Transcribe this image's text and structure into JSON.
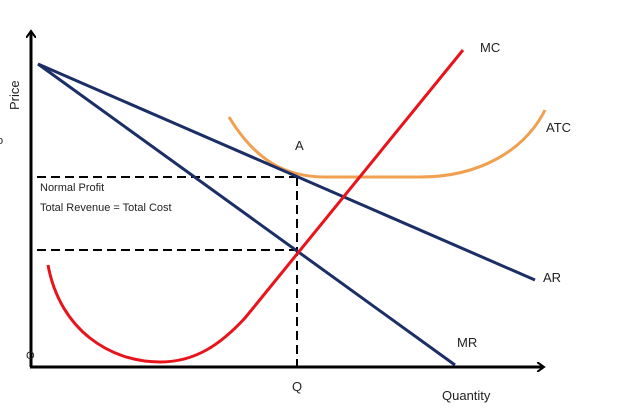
{
  "axes": {
    "y_label": "Price",
    "x_label": "Quantity",
    "origin_label": "O",
    "stray_mark": "o"
  },
  "curves": {
    "mc": {
      "label": "MC",
      "color": "#e8141c"
    },
    "atc": {
      "label": "ATC",
      "color": "#f0a050"
    },
    "ar": {
      "label": "AR",
      "color": "#1b2f66"
    },
    "mr": {
      "label": "MR",
      "color": "#1b2f66"
    }
  },
  "points": {
    "a_label": "A",
    "q_label": "Q"
  },
  "annotation": {
    "line1": "Normal Profit",
    "line2": "Total Revenue = Total Cost"
  }
}
